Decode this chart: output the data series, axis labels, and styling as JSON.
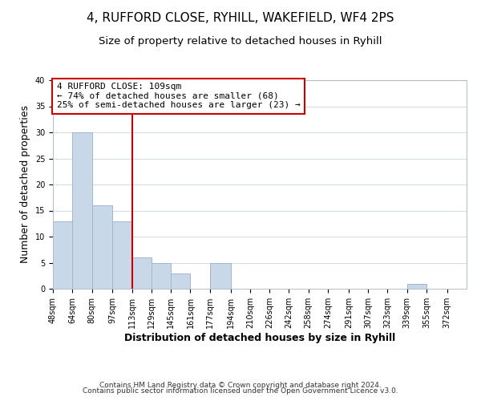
{
  "title": "4, RUFFORD CLOSE, RYHILL, WAKEFIELD, WF4 2PS",
  "subtitle": "Size of property relative to detached houses in Ryhill",
  "xlabel": "Distribution of detached houses by size in Ryhill",
  "ylabel": "Number of detached properties",
  "footer_line1": "Contains HM Land Registry data © Crown copyright and database right 2024.",
  "footer_line2": "Contains public sector information licensed under the Open Government Licence v3.0.",
  "bin_labels": [
    "48sqm",
    "64sqm",
    "80sqm",
    "97sqm",
    "113sqm",
    "129sqm",
    "145sqm",
    "161sqm",
    "177sqm",
    "194sqm",
    "210sqm",
    "226sqm",
    "242sqm",
    "258sqm",
    "274sqm",
    "291sqm",
    "307sqm",
    "323sqm",
    "339sqm",
    "355sqm",
    "372sqm"
  ],
  "bin_edges": [
    48,
    64,
    80,
    97,
    113,
    129,
    145,
    161,
    177,
    194,
    210,
    226,
    242,
    258,
    274,
    291,
    307,
    323,
    339,
    355,
    372,
    388
  ],
  "values": [
    13,
    30,
    16,
    13,
    6,
    5,
    3,
    0,
    5,
    0,
    0,
    0,
    0,
    0,
    0,
    0,
    0,
    0,
    1,
    0,
    0
  ],
  "bar_color": "#c8d8e8",
  "bar_edge_color": "#a0b8cc",
  "vline_x": 113,
  "vline_color": "#cc0000",
  "ylim": [
    0,
    40
  ],
  "annotation_text": "4 RUFFORD CLOSE: 109sqm\n← 74% of detached houses are smaller (68)\n25% of semi-detached houses are larger (23) →",
  "annotation_box_color": "#cc0000",
  "background_color": "#ffffff",
  "grid_color": "#d4dde6",
  "title_fontsize": 11,
  "subtitle_fontsize": 9.5,
  "label_fontsize": 9,
  "tick_fontsize": 7,
  "annot_fontsize": 8,
  "footer_fontsize": 6.5
}
